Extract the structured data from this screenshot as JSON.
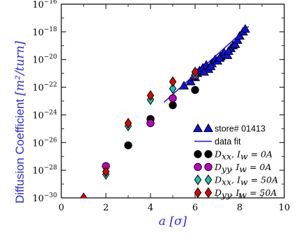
{
  "chart_data": {
    "type": "scatter",
    "title": "",
    "xlabel": "a [σ]",
    "ylabel": "Diffusion Coefficient [m²/turn]",
    "xlim": [
      0,
      10
    ],
    "ylim_log10": [
      -30,
      -16
    ],
    "y_scale": "log",
    "x_ticks": [
      0,
      2,
      4,
      6,
      8,
      10
    ],
    "y_ticks_log10": [
      -30,
      -28,
      -26,
      -24,
      -22,
      -20,
      -18,
      -16
    ],
    "grid": false,
    "legend_position": "bottom-right",
    "series": [
      {
        "name": "store# 01413",
        "marker": "triangle",
        "color": "#1010e0",
        "points": [
          [
            5.5,
            -21.9
          ],
          [
            5.8,
            -21.6
          ],
          [
            6.0,
            -21.3
          ],
          [
            6.1,
            -21.0
          ],
          [
            6.2,
            -20.8
          ],
          [
            6.35,
            -20.6
          ],
          [
            6.5,
            -20.4
          ],
          [
            6.6,
            -20.7
          ],
          [
            6.75,
            -20.3
          ],
          [
            6.9,
            -20.0
          ],
          [
            7.0,
            -20.1
          ],
          [
            7.15,
            -19.8
          ],
          [
            7.3,
            -19.5
          ],
          [
            7.45,
            -19.7
          ],
          [
            7.6,
            -19.2
          ],
          [
            7.7,
            -19.0
          ],
          [
            7.8,
            -18.9
          ],
          [
            7.9,
            -18.6
          ],
          [
            8.0,
            -18.3
          ],
          [
            8.15,
            -18.0
          ],
          [
            8.25,
            -17.8
          ],
          [
            6.4,
            -20.9
          ],
          [
            6.7,
            -20.5
          ],
          [
            7.1,
            -19.9
          ],
          [
            7.5,
            -19.4
          ]
        ]
      },
      {
        "name": "data fit",
        "type": "line",
        "color": "#1010e0",
        "x": [
          4.6,
          8.4
        ],
        "y_log10": [
          -23.1,
          -17.6
        ]
      },
      {
        "name": "D_xx, I_w = 0A",
        "marker": "circle",
        "color": "#000000",
        "points": [
          [
            3,
            -26.2
          ],
          [
            4,
            -24.3
          ],
          [
            5,
            -23.3
          ],
          [
            6,
            -22.2
          ]
        ]
      },
      {
        "name": "D_yy, I_w = 0A",
        "marker": "circle",
        "color": "#c000c0",
        "points": [
          [
            2,
            -27.7
          ],
          [
            4,
            -24.6
          ],
          [
            5,
            -22.8
          ],
          [
            6,
            -21.2
          ]
        ]
      },
      {
        "name": "D_xx, I_w = 50A",
        "marker": "diamond",
        "color": "#20c0b0",
        "points": [
          [
            1,
            -30.2
          ],
          [
            2,
            -28.3
          ],
          [
            3,
            -24.8
          ],
          [
            4,
            -22.9
          ],
          [
            5,
            -22.1
          ],
          [
            6,
            -21.1
          ]
        ]
      },
      {
        "name": "D_yy, I_w = 50A",
        "marker": "diamond",
        "color": "#e00000",
        "points": [
          [
            1,
            -30.0
          ],
          [
            2,
            -28.1
          ],
          [
            3,
            -24.6
          ],
          [
            4,
            -22.6
          ],
          [
            5,
            -21.6
          ],
          [
            6,
            -20.9
          ]
        ]
      }
    ]
  },
  "legend": {
    "entries": [
      {
        "id": "store",
        "label": "store# 01413"
      },
      {
        "id": "fit",
        "label": "data fit"
      },
      {
        "id": "dxx0",
        "label": "D_xx, I_w = 0A",
        "sym": "D",
        "sub": "xx",
        "current": "I",
        "csub": "w",
        "val": " = 0A"
      },
      {
        "id": "dyy0",
        "label": "D_yy, I_w = 0A",
        "sym": "D",
        "sub": "yy",
        "current": "I",
        "csub": "w",
        "val": " = 0A"
      },
      {
        "id": "dxx50",
        "label": "D_xx, I_w = 50A",
        "sym": "D",
        "sub": "xx",
        "current": "I",
        "csub": "w",
        "val": " = 50A"
      },
      {
        "id": "dyy50",
        "label": "D_yy, I_w = 50A",
        "sym": "D",
        "sub": "yy",
        "current": "I",
        "csub": "w",
        "val": " = 50A"
      }
    ]
  },
  "axes": {
    "ylabel_main": "Diffusion Coefficient ",
    "ylabel_unit": "[m²/turn]",
    "xlabel": "a [σ]",
    "tick_base": "10"
  }
}
